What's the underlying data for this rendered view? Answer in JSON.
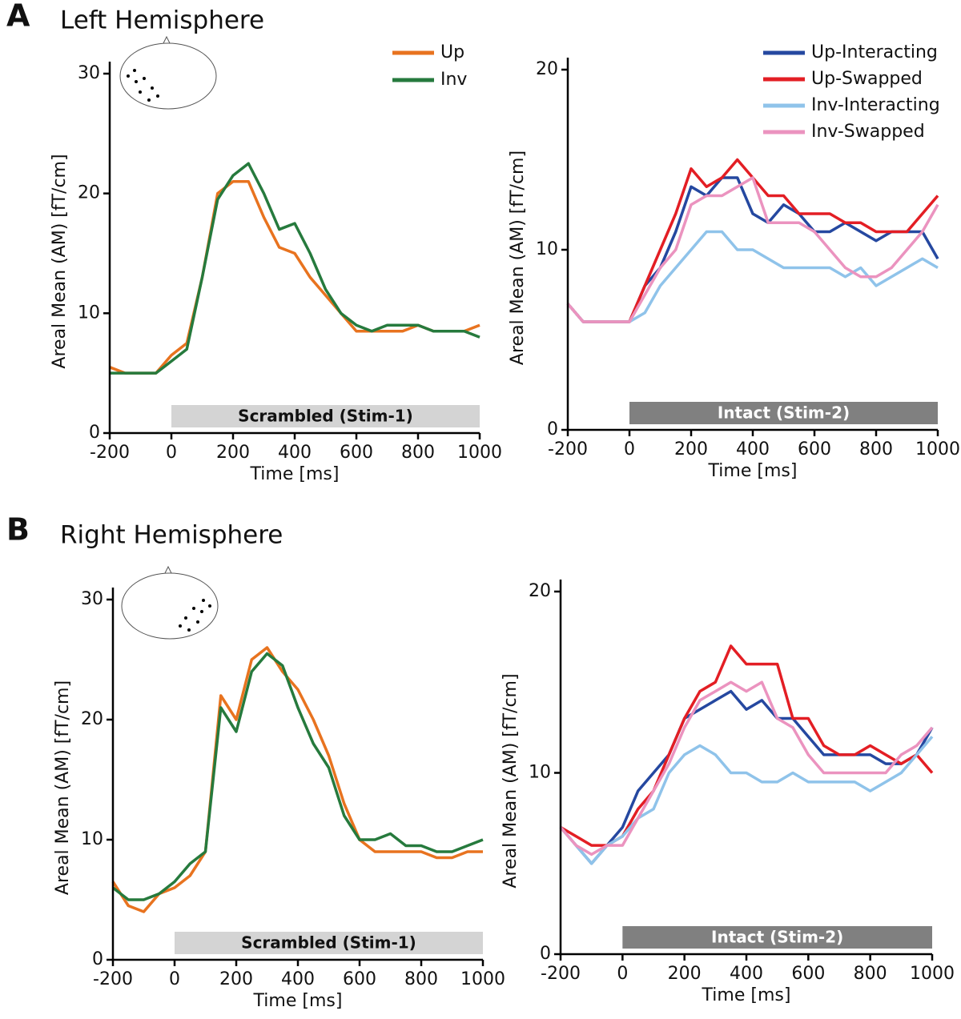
{
  "panels": [
    {
      "label": "A",
      "title": "Left Hemisphere"
    },
    {
      "label": "B",
      "title": "Right Hemisphere"
    }
  ],
  "chart_data": [
    {
      "type": "line",
      "xlabel": "Time [ms]",
      "ylabel": "Areal Mean (AM) [fT/cm]",
      "x": [
        -200,
        -150,
        -100,
        -50,
        0,
        50,
        100,
        150,
        200,
        250,
        300,
        350,
        400,
        450,
        500,
        550,
        600,
        650,
        700,
        750,
        800,
        850,
        900,
        950,
        1000
      ],
      "xlim": [
        -200,
        1000
      ],
      "ylim": [
        0,
        30
      ],
      "xticks": [
        -200,
        0,
        200,
        400,
        600,
        800,
        1000
      ],
      "yticks": [
        0,
        10,
        20,
        30
      ],
      "legend": "upper right",
      "band": {
        "text": "Scrambled (Stim-1)",
        "x": [
          0,
          1000
        ],
        "color": "#d4d4d4",
        "text_color": "#111"
      },
      "series": [
        {
          "name": "Up",
          "color": "#e8731f",
          "values": [
            5.5,
            5,
            5,
            5,
            6.5,
            7.5,
            13,
            20,
            21,
            21,
            18,
            15.5,
            15,
            13,
            11.5,
            10,
            8.5,
            8.5,
            8.5,
            8.5,
            9,
            8.5,
            8.5,
            8.5,
            9
          ]
        },
        {
          "name": "Inv",
          "color": "#267a3d",
          "values": [
            5,
            5,
            5,
            5,
            6,
            7,
            13,
            19.5,
            21.5,
            22.5,
            20,
            17,
            17.5,
            15,
            12,
            10,
            9,
            8.5,
            9,
            9,
            9,
            8.5,
            8.5,
            8.5,
            8
          ]
        }
      ]
    },
    {
      "type": "line",
      "xlabel": "Time [ms]",
      "ylabel": "Areal Mean (AM) [fT/cm]",
      "x": [
        -200,
        -150,
        -100,
        -50,
        0,
        50,
        100,
        150,
        200,
        250,
        300,
        350,
        400,
        450,
        500,
        550,
        600,
        650,
        700,
        750,
        800,
        850,
        900,
        950,
        1000
      ],
      "xlim": [
        -200,
        1000
      ],
      "ylim": [
        0,
        20
      ],
      "xticks": [
        -200,
        0,
        200,
        400,
        600,
        800,
        1000
      ],
      "yticks": [
        0,
        10,
        20
      ],
      "legend": "upper right",
      "band": {
        "text": "Intact (Stim-2)",
        "x": [
          0,
          1000
        ],
        "color": "#808080",
        "text_color": "#ffffff"
      },
      "series": [
        {
          "name": "Up-Interacting",
          "color": "#2548a0",
          "values": [
            7,
            6,
            6,
            6,
            6,
            8,
            9,
            11,
            13.5,
            13,
            14,
            14,
            12,
            11.5,
            12.5,
            12,
            11,
            11,
            11.5,
            11,
            10.5,
            11,
            11,
            11,
            9.5
          ]
        },
        {
          "name": "Up-Swapped",
          "color": "#e31e24",
          "values": [
            7,
            6,
            6,
            6,
            6,
            8,
            10,
            12,
            14.5,
            13.5,
            14,
            15,
            14,
            13,
            13,
            12,
            12,
            12,
            11.5,
            11.5,
            11,
            11,
            11,
            12,
            13
          ]
        },
        {
          "name": "Inv-Interacting",
          "color": "#8fc3ea",
          "values": [
            7,
            6,
            6,
            6,
            6,
            6.5,
            8,
            9,
            10,
            11,
            11,
            10,
            10,
            9.5,
            9,
            9,
            9,
            9,
            8.5,
            9,
            8,
            8.5,
            9,
            9.5,
            9
          ]
        },
        {
          "name": "Inv-Swapped",
          "color": "#eb93bf",
          "values": [
            7,
            6,
            6,
            6,
            6,
            7.5,
            9,
            10,
            12.5,
            13,
            13,
            13.5,
            14,
            11.5,
            11.5,
            11.5,
            11,
            10,
            9,
            8.5,
            8.5,
            9,
            10,
            11,
            12.5
          ]
        }
      ]
    },
    {
      "type": "line",
      "xlabel": "Time [ms]",
      "ylabel": "Areal Mean (AM) [fT/cm]",
      "x": [
        -200,
        -150,
        -100,
        -50,
        0,
        50,
        100,
        150,
        200,
        250,
        300,
        350,
        400,
        450,
        500,
        550,
        600,
        650,
        700,
        750,
        800,
        850,
        900,
        950,
        1000
      ],
      "xlim": [
        -200,
        1000
      ],
      "ylim": [
        0,
        30
      ],
      "xticks": [
        -200,
        0,
        200,
        400,
        600,
        800,
        1000
      ],
      "yticks": [
        0,
        10,
        20,
        30
      ],
      "band": {
        "text": "Scrambled (Stim-1)",
        "x": [
          0,
          1000
        ],
        "color": "#d4d4d4",
        "text_color": "#111"
      },
      "series": [
        {
          "color": "#e8731f",
          "values": [
            6.5,
            4.5,
            4,
            5.5,
            6,
            7,
            9,
            22,
            20,
            25,
            26,
            24,
            22.5,
            20,
            17,
            13,
            10,
            9,
            9,
            9,
            9,
            8.5,
            8.5,
            9,
            9
          ]
        },
        {
          "color": "#267a3d",
          "values": [
            6,
            5,
            5,
            5.5,
            6.5,
            8,
            9,
            21,
            19,
            24,
            25.5,
            24.5,
            21,
            18,
            16,
            12,
            10,
            10,
            10.5,
            9.5,
            9.5,
            9,
            9,
            9.5,
            10
          ]
        }
      ]
    },
    {
      "type": "line",
      "xlabel": "Time [ms]",
      "ylabel": "Areal Mean (AM) [fT/cm]",
      "x": [
        -200,
        -150,
        -100,
        -50,
        0,
        50,
        100,
        150,
        200,
        250,
        300,
        350,
        400,
        450,
        500,
        550,
        600,
        650,
        700,
        750,
        800,
        850,
        900,
        950,
        1000
      ],
      "xlim": [
        -200,
        1000
      ],
      "ylim": [
        0,
        20
      ],
      "xticks": [
        -200,
        0,
        200,
        400,
        600,
        800,
        1000
      ],
      "yticks": [
        0,
        10,
        20
      ],
      "band": {
        "text": "Intact (Stim-2)",
        "x": [
          0,
          1000
        ],
        "color": "#808080",
        "text_color": "#ffffff"
      },
      "series": [
        {
          "color": "#2548a0",
          "values": [
            7,
            6,
            5,
            6,
            7,
            9,
            10,
            11,
            13,
            13.5,
            14,
            14.5,
            13.5,
            14,
            13,
            13,
            12,
            11,
            11,
            11,
            11,
            10.5,
            10.5,
            11,
            12.5
          ]
        },
        {
          "color": "#e31e24",
          "values": [
            7,
            6.5,
            6,
            6,
            6.5,
            8,
            9,
            11,
            13,
            14.5,
            15,
            17,
            16,
            16,
            16,
            13,
            13,
            11.5,
            11,
            11,
            11.5,
            11,
            10.5,
            11,
            10
          ]
        },
        {
          "color": "#8fc3ea",
          "values": [
            7,
            6,
            5,
            6,
            6.5,
            7.5,
            8,
            10,
            11,
            11.5,
            11,
            10,
            10,
            9.5,
            9.5,
            10,
            9.5,
            9.5,
            9.5,
            9.5,
            9,
            9.5,
            10,
            11,
            12
          ]
        },
        {
          "color": "#eb93bf",
          "values": [
            7,
            6,
            5.5,
            6,
            6,
            7.5,
            9,
            10.5,
            12.5,
            14,
            14.5,
            15,
            14.5,
            15,
            13,
            12.5,
            11,
            10,
            10,
            10,
            10,
            10,
            11,
            11.5,
            12.5
          ]
        }
      ]
    }
  ]
}
